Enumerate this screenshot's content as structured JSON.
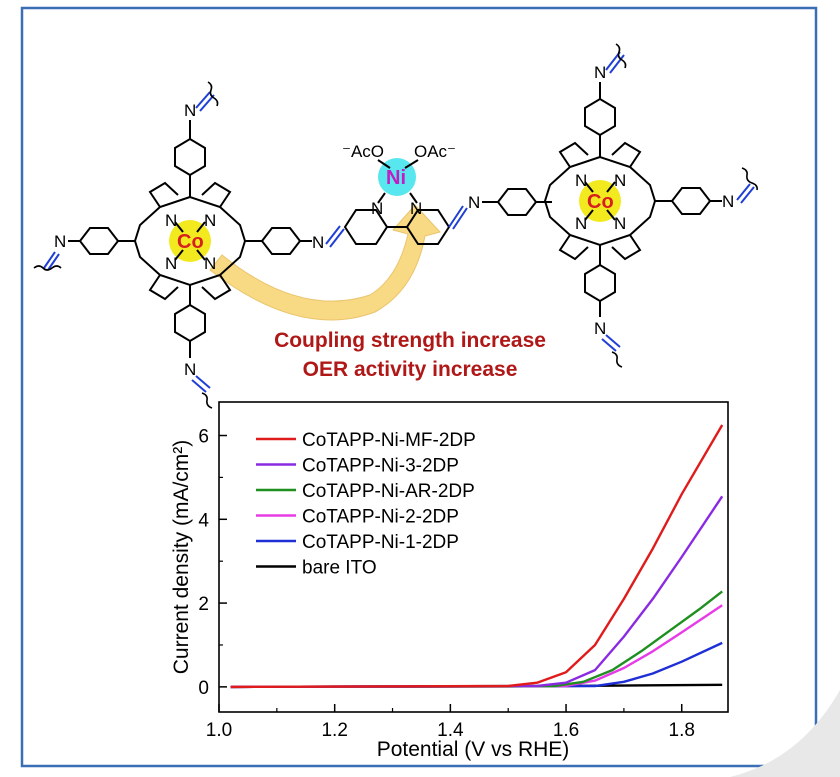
{
  "structure": {
    "left_metal": "Co",
    "right_metal": "Co",
    "center_metal": "Ni",
    "acetate_left": "⁻AcO",
    "acetate_right": "OAc⁻",
    "nitrogen": "N",
    "colors": {
      "porphyrin_center": "#f2ea1f",
      "nickel_center": "#58e6ef",
      "co_text": "#d81f1f",
      "ni_text": "#c21cc2",
      "imine_blue": "#1f3fd6",
      "arrow_fill": "#f8d67a",
      "frame": "#3a6fb5"
    }
  },
  "captions": {
    "line1": "Coupling strength increase",
    "line2": "OER activity increase"
  },
  "chart_data": {
    "type": "line",
    "xlabel": "Potential (V vs RHE)",
    "ylabel": "Current density (mA/cm²)",
    "xlim": [
      1.0,
      1.88
    ],
    "ylim": [
      -0.6,
      6.8
    ],
    "xticks": [
      1.0,
      1.2,
      1.4,
      1.6,
      1.8
    ],
    "xtick_labels": [
      "1.0",
      "1.2",
      "1.4",
      "1.6",
      "1.8"
    ],
    "yticks": [
      0,
      2,
      4,
      6
    ],
    "ytick_labels": [
      "0",
      "2",
      "4",
      "6"
    ],
    "legend_position": "top-left",
    "series": [
      {
        "name": "CoTAPP-Ni-MF-2DP",
        "color": "#e01b1b",
        "x": [
          1.02,
          1.5,
          1.55,
          1.6,
          1.65,
          1.7,
          1.75,
          1.8,
          1.87
        ],
        "y": [
          0,
          0.02,
          0.1,
          0.35,
          1.0,
          2.1,
          3.3,
          4.6,
          6.25
        ]
      },
      {
        "name": "CoTAPP-Ni-3-2DP",
        "color": "#8a2be2",
        "x": [
          1.02,
          1.55,
          1.6,
          1.65,
          1.7,
          1.75,
          1.8,
          1.87
        ],
        "y": [
          0,
          0.02,
          0.1,
          0.4,
          1.2,
          2.1,
          3.1,
          4.55
        ]
      },
      {
        "name": "CoTAPP-Ni-AR-2DP",
        "color": "#1f8f1f",
        "x": [
          1.02,
          1.58,
          1.63,
          1.68,
          1.73,
          1.78,
          1.83,
          1.87
        ],
        "y": [
          0,
          0.02,
          0.12,
          0.4,
          0.85,
          1.35,
          1.85,
          2.28
        ]
      },
      {
        "name": "CoTAPP-Ni-2-2DP",
        "color": "#e63be6",
        "x": [
          1.02,
          1.6,
          1.65,
          1.7,
          1.75,
          1.8,
          1.87
        ],
        "y": [
          0,
          0.02,
          0.15,
          0.45,
          0.85,
          1.3,
          1.95
        ]
      },
      {
        "name": "CoTAPP-Ni-1-2DP",
        "color": "#1f2fd6",
        "x": [
          1.02,
          1.65,
          1.7,
          1.75,
          1.8,
          1.87
        ],
        "y": [
          0,
          0.02,
          0.12,
          0.32,
          0.6,
          1.05
        ]
      },
      {
        "name": "bare ITO",
        "color": "#000000",
        "x": [
          1.02,
          1.5,
          1.87
        ],
        "y": [
          0,
          0.01,
          0.05
        ]
      }
    ]
  }
}
